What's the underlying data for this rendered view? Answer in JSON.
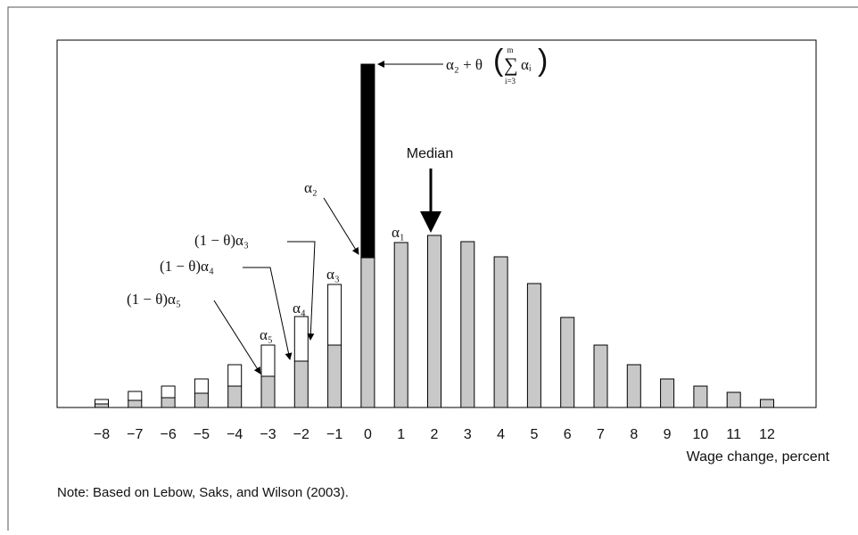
{
  "chart_data": {
    "type": "bar",
    "categories": [
      "−8",
      "−7",
      "−6",
      "−5",
      "−4",
      "−3",
      "−2",
      "−1",
      "0",
      "1",
      "2",
      "3",
      "4",
      "5",
      "6",
      "7",
      "8",
      "9",
      "10",
      "11",
      "12"
    ],
    "series": [
      {
        "color": "#c8c8c8",
        "values": [
          4,
          8,
          11,
          16,
          24,
          35,
          52,
          70,
          168,
          185,
          193,
          186,
          169,
          139,
          101,
          70,
          48,
          32,
          24,
          17,
          9
        ]
      },
      {
        "color": "#ffffff",
        "values": [
          5,
          10,
          13,
          16,
          24,
          35,
          50,
          68,
          null,
          null,
          null,
          null,
          null,
          null,
          null,
          null,
          null,
          null,
          null,
          null,
          null
        ]
      },
      {
        "color": "#000000",
        "values": [
          null,
          null,
          null,
          null,
          null,
          null,
          null,
          null,
          217,
          null,
          null,
          null,
          null,
          null,
          null,
          null,
          null,
          null,
          null,
          null,
          null
        ]
      }
    ],
    "stacked": true,
    "ylim": [
      0,
      412
    ],
    "x_label": "Wage change, percent",
    "note": "Note: Based on Lebow, Saks, and Wilson (2003).",
    "annotations": [
      "α₂ + θ",
      "∑",
      "m",
      "i=3",
      "αᵢ",
      "α₂",
      "α₁",
      "Median",
      "(1 − θ)α₃",
      "(1 − θ)α₄",
      "(1 − θ)α₅",
      "α₃",
      "α₄",
      "α₅"
    ]
  }
}
